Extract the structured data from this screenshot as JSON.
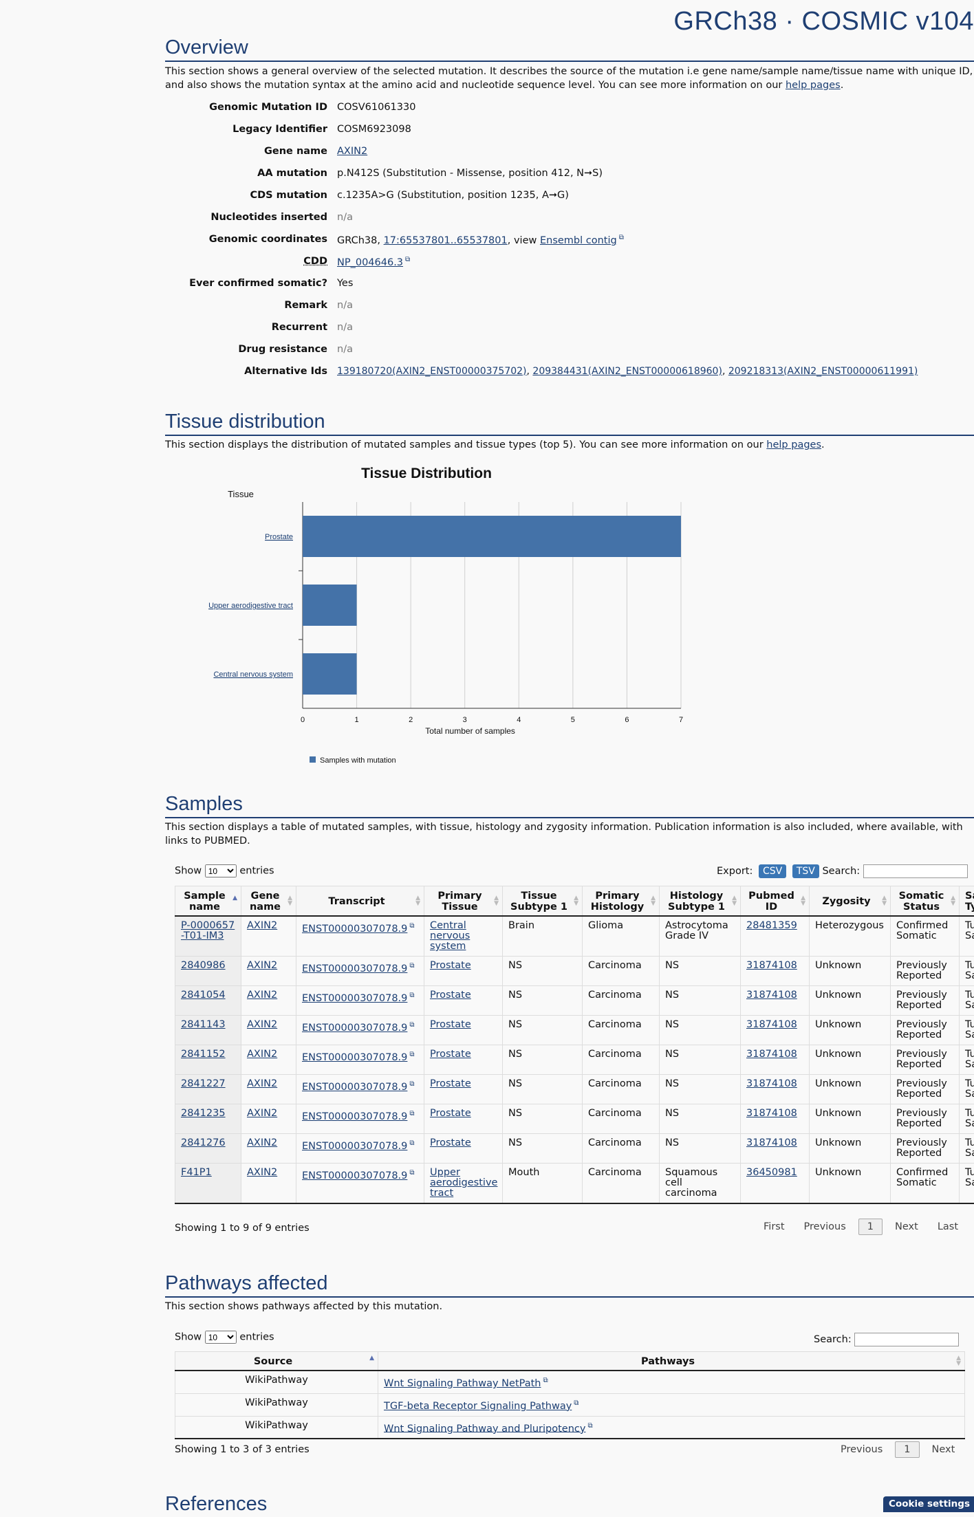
{
  "brand": "GRCh38 · COSMIC v104",
  "overview": {
    "heading": "Overview",
    "desc_text": "This section shows a general overview of the selected mutation. It describes the source of the mutation i.e gene name/sample name/tissue name with unique ID, and also shows the mutation syntax at the amino acid and nucleotide sequence level. You can see more information on our ",
    "desc_link": "help pages",
    "rows": {
      "genomic_mutation_id": {
        "key": "Genomic Mutation ID",
        "value": "COSV61061330"
      },
      "legacy_identifier": {
        "key": "Legacy Identifier",
        "value": "COSM6923098"
      },
      "gene_name": {
        "key": "Gene name",
        "value": "AXIN2"
      },
      "aa_mutation": {
        "key": "AA mutation",
        "value": "p.N412S (Substitution - Missense, position 412, N➞S)"
      },
      "cds_mutation": {
        "key": "CDS mutation",
        "value": "c.1235A>G (Substitution, position 1235, A➞G)"
      },
      "nucleotides_inserted": {
        "key": "Nucleotides inserted",
        "value": "n/a"
      },
      "genomic_coordinates": {
        "key": "Genomic coordinates",
        "prefix": "GRCh38, ",
        "coord_link": "17:65537801..65537801",
        "mid": ", view ",
        "ensembl_link": "Ensembl contig"
      },
      "cdd": {
        "key": "CDD",
        "value": "NP_004646.3"
      },
      "ever_confirmed_somatic": {
        "key": "Ever confirmed somatic?",
        "value": "Yes"
      },
      "remark": {
        "key": "Remark",
        "value": "n/a"
      },
      "recurrent": {
        "key": "Recurrent",
        "value": "n/a"
      },
      "drug_resistance": {
        "key": "Drug resistance",
        "value": "n/a"
      },
      "alternative_ids": {
        "key": "Alternative Ids",
        "ids": [
          "139180720(AXIN2_ENST00000375702)",
          "209384431(AXIN2_ENST00000618960)",
          "209218313(AXIN2_ENST00000611991)"
        ]
      }
    }
  },
  "tissue": {
    "heading": "Tissue distribution",
    "desc_text": "This section displays the distribution of mutated samples and tissue types (top 5). You can see more information on our ",
    "desc_link": "help pages"
  },
  "chart_data": {
    "type": "bar",
    "orientation": "horizontal",
    "title": "Tissue Distribution",
    "ylabel": "Tissue",
    "xlabel": "Total number of samples",
    "categories": [
      "Prostate",
      "Upper aerodigestive tract",
      "Central nervous system"
    ],
    "series": [
      {
        "name": "Samples with mutation",
        "values": [
          7,
          1,
          1
        ],
        "color": "#4472a8"
      }
    ],
    "xlim": [
      0,
      7
    ],
    "xticks": [
      "0",
      "1",
      "2",
      "3",
      "4",
      "5",
      "6",
      "7"
    ],
    "grid": true,
    "legend": "bottom"
  },
  "samples": {
    "heading": "Samples",
    "desc": "This section displays a table of mutated samples, with tissue, histology and zygosity information. Publication information is also included, where available, with links to PUBMED.",
    "show_label": "Show",
    "entries_label": "entries",
    "page_size": "10",
    "export_label": "Export:",
    "csv": "CSV",
    "tsv": "TSV",
    "search_label": "Search:",
    "columns": [
      "Sample name",
      "Gene name",
      "Transcript",
      "Primary Tissue",
      "Tissue Subtype 1",
      "Primary Histology",
      "Histology Subtype 1",
      "Pubmed ID",
      "Zygosity",
      "Somatic Status",
      "Sample Type"
    ],
    "rows": [
      [
        "P-0000657-T01-IM3",
        "AXIN2",
        "ENST00000307078.9",
        "Central nervous system",
        "Brain",
        "Glioma",
        "Astrocytoma Grade IV",
        "28481359",
        "Heterozygous",
        "Confirmed Somatic",
        "Tumour Sample"
      ],
      [
        "2840986",
        "AXIN2",
        "ENST00000307078.9",
        "Prostate",
        "NS",
        "Carcinoma",
        "NS",
        "31874108",
        "Unknown",
        "Previously Reported",
        "Tumour Sample"
      ],
      [
        "2841054",
        "AXIN2",
        "ENST00000307078.9",
        "Prostate",
        "NS",
        "Carcinoma",
        "NS",
        "31874108",
        "Unknown",
        "Previously Reported",
        "Tumour Sample"
      ],
      [
        "2841143",
        "AXIN2",
        "ENST00000307078.9",
        "Prostate",
        "NS",
        "Carcinoma",
        "NS",
        "31874108",
        "Unknown",
        "Previously Reported",
        "Tumour Sample"
      ],
      [
        "2841152",
        "AXIN2",
        "ENST00000307078.9",
        "Prostate",
        "NS",
        "Carcinoma",
        "NS",
        "31874108",
        "Unknown",
        "Previously Reported",
        "Tumour Sample"
      ],
      [
        "2841227",
        "AXIN2",
        "ENST00000307078.9",
        "Prostate",
        "NS",
        "Carcinoma",
        "NS",
        "31874108",
        "Unknown",
        "Previously Reported",
        "Tumour Sample"
      ],
      [
        "2841235",
        "AXIN2",
        "ENST00000307078.9",
        "Prostate",
        "NS",
        "Carcinoma",
        "NS",
        "31874108",
        "Unknown",
        "Previously Reported",
        "Tumour Sample"
      ],
      [
        "2841276",
        "AXIN2",
        "ENST00000307078.9",
        "Prostate",
        "NS",
        "Carcinoma",
        "NS",
        "31874108",
        "Unknown",
        "Previously Reported",
        "Tumour Sample"
      ],
      [
        "F41P1",
        "AXIN2",
        "ENST00000307078.9",
        "Upper aerodigestive tract",
        "Mouth",
        "Carcinoma",
        "Squamous cell carcinoma",
        "36450981",
        "Unknown",
        "Confirmed Somatic",
        "Tumour Sample"
      ]
    ],
    "info": "Showing 1 to 9 of 9 entries",
    "pager": {
      "first": "First",
      "previous": "Previous",
      "page": "1",
      "next": "Next",
      "last": "Last"
    }
  },
  "pathways": {
    "heading": "Pathways affected",
    "desc": "This section shows pathways affected by this mutation.",
    "show_label": "Show",
    "entries_label": "entries",
    "page_size": "10",
    "search_label": "Search:",
    "columns": [
      "Source",
      "Pathways"
    ],
    "rows": [
      [
        "WikiPathway",
        "Wnt Signaling Pathway NetPath"
      ],
      [
        "WikiPathway",
        "TGF-beta Receptor Signaling Pathway"
      ],
      [
        "WikiPathway",
        "Wnt Signaling Pathway and Pluripotency"
      ]
    ],
    "info": "Showing 1 to 3 of 3 entries",
    "pager": {
      "previous": "Previous",
      "page": "1",
      "next": "Next"
    }
  },
  "references": {
    "heading": "References"
  },
  "cookie": "Cookie settings"
}
